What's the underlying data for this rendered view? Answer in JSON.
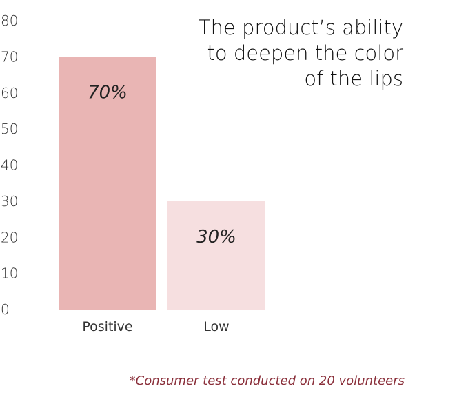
{
  "chart_data": {
    "type": "bar",
    "title_lines": [
      "The product’s ability",
      "to deepen the color",
      "of the lips"
    ],
    "categories": [
      "Positive",
      "Low"
    ],
    "values": [
      70,
      30
    ],
    "data_labels": [
      "70%",
      "30%"
    ],
    "colors": [
      "#e9b5b4",
      "#f6dfe0"
    ],
    "ylim": [
      0,
      80
    ],
    "yticks": [
      "0",
      "10",
      "20",
      "30",
      "40",
      "50",
      "60",
      "70",
      "80"
    ],
    "grid": false,
    "footnote": "*Consumer test conducted on 20 volunteers"
  }
}
